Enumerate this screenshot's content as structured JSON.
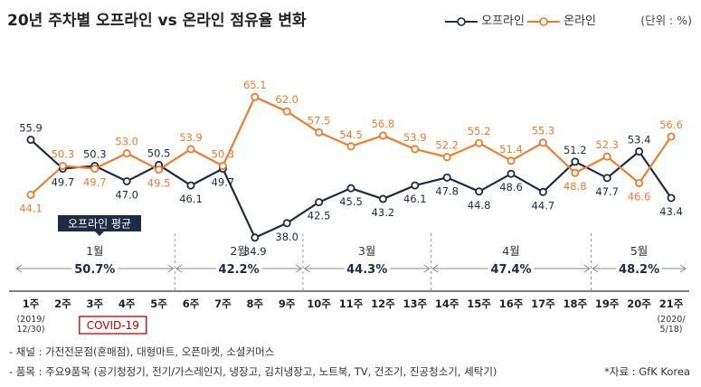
{
  "title": "20년 주차별 오프라인 vs 온라인 점유율 변화",
  "unit_note": "(단위 : %)",
  "colors": {
    "offline": "#1f2a44",
    "online": "#ed7d31",
    "covid": "#c00000",
    "grid": "#999999"
  },
  "chart_data": {
    "type": "line",
    "categories": [
      "1주",
      "2주",
      "3주",
      "4주",
      "5주",
      "6주",
      "7주",
      "8주",
      "9주",
      "10주",
      "11주",
      "12주",
      "13주",
      "14주",
      "15주",
      "16주",
      "17주",
      "18주",
      "19주",
      "20주",
      "21주"
    ],
    "series": [
      {
        "name": "오프라인",
        "values": [
          55.9,
          49.7,
          50.3,
          47.0,
          50.5,
          46.1,
          49.7,
          34.9,
          38.0,
          42.5,
          45.5,
          43.2,
          46.1,
          47.8,
          44.8,
          48.6,
          44.7,
          51.2,
          47.7,
          53.4,
          43.4
        ]
      },
      {
        "name": "온라인",
        "values": [
          44.1,
          50.3,
          49.7,
          53.0,
          49.5,
          53.9,
          50.3,
          65.1,
          62.0,
          57.5,
          54.5,
          56.8,
          53.9,
          52.2,
          55.2,
          51.4,
          55.3,
          48.8,
          52.3,
          46.6,
          56.6
        ]
      }
    ],
    "ylim": [
      30,
      70
    ],
    "months": [
      {
        "label": "1월",
        "avg": "50.7%",
        "from": 0,
        "to": 4
      },
      {
        "label": "2월",
        "avg": "42.2%",
        "from": 5,
        "to": 8
      },
      {
        "label": "3월",
        "avg": "44.3%",
        "from": 9,
        "to": 12
      },
      {
        "label": "4월",
        "avg": "47.4%",
        "from": 13,
        "to": 17
      },
      {
        "label": "5월",
        "avg": "48.2%",
        "from": 18,
        "to": 20
      }
    ],
    "avg_label": "오프라인 평균",
    "first_week_date": "(2019/\n12/30)",
    "last_week_date": "(2020/\n5/18)",
    "covid_label": "COVID-19",
    "covid_week_index": 2
  },
  "notes": [
    "- 채널 : 가전전문점(혼매점), 대형마트, 오픈마켓, 소셜커머스",
    "- 품목 : 주요9품목 (공기청정기, 전기/가스레인지, 냉장고, 김치냉장고, 노트북, TV, 건조기, 진공청소기, 세탁기)"
  ],
  "source": "*자료 : GfK Korea"
}
